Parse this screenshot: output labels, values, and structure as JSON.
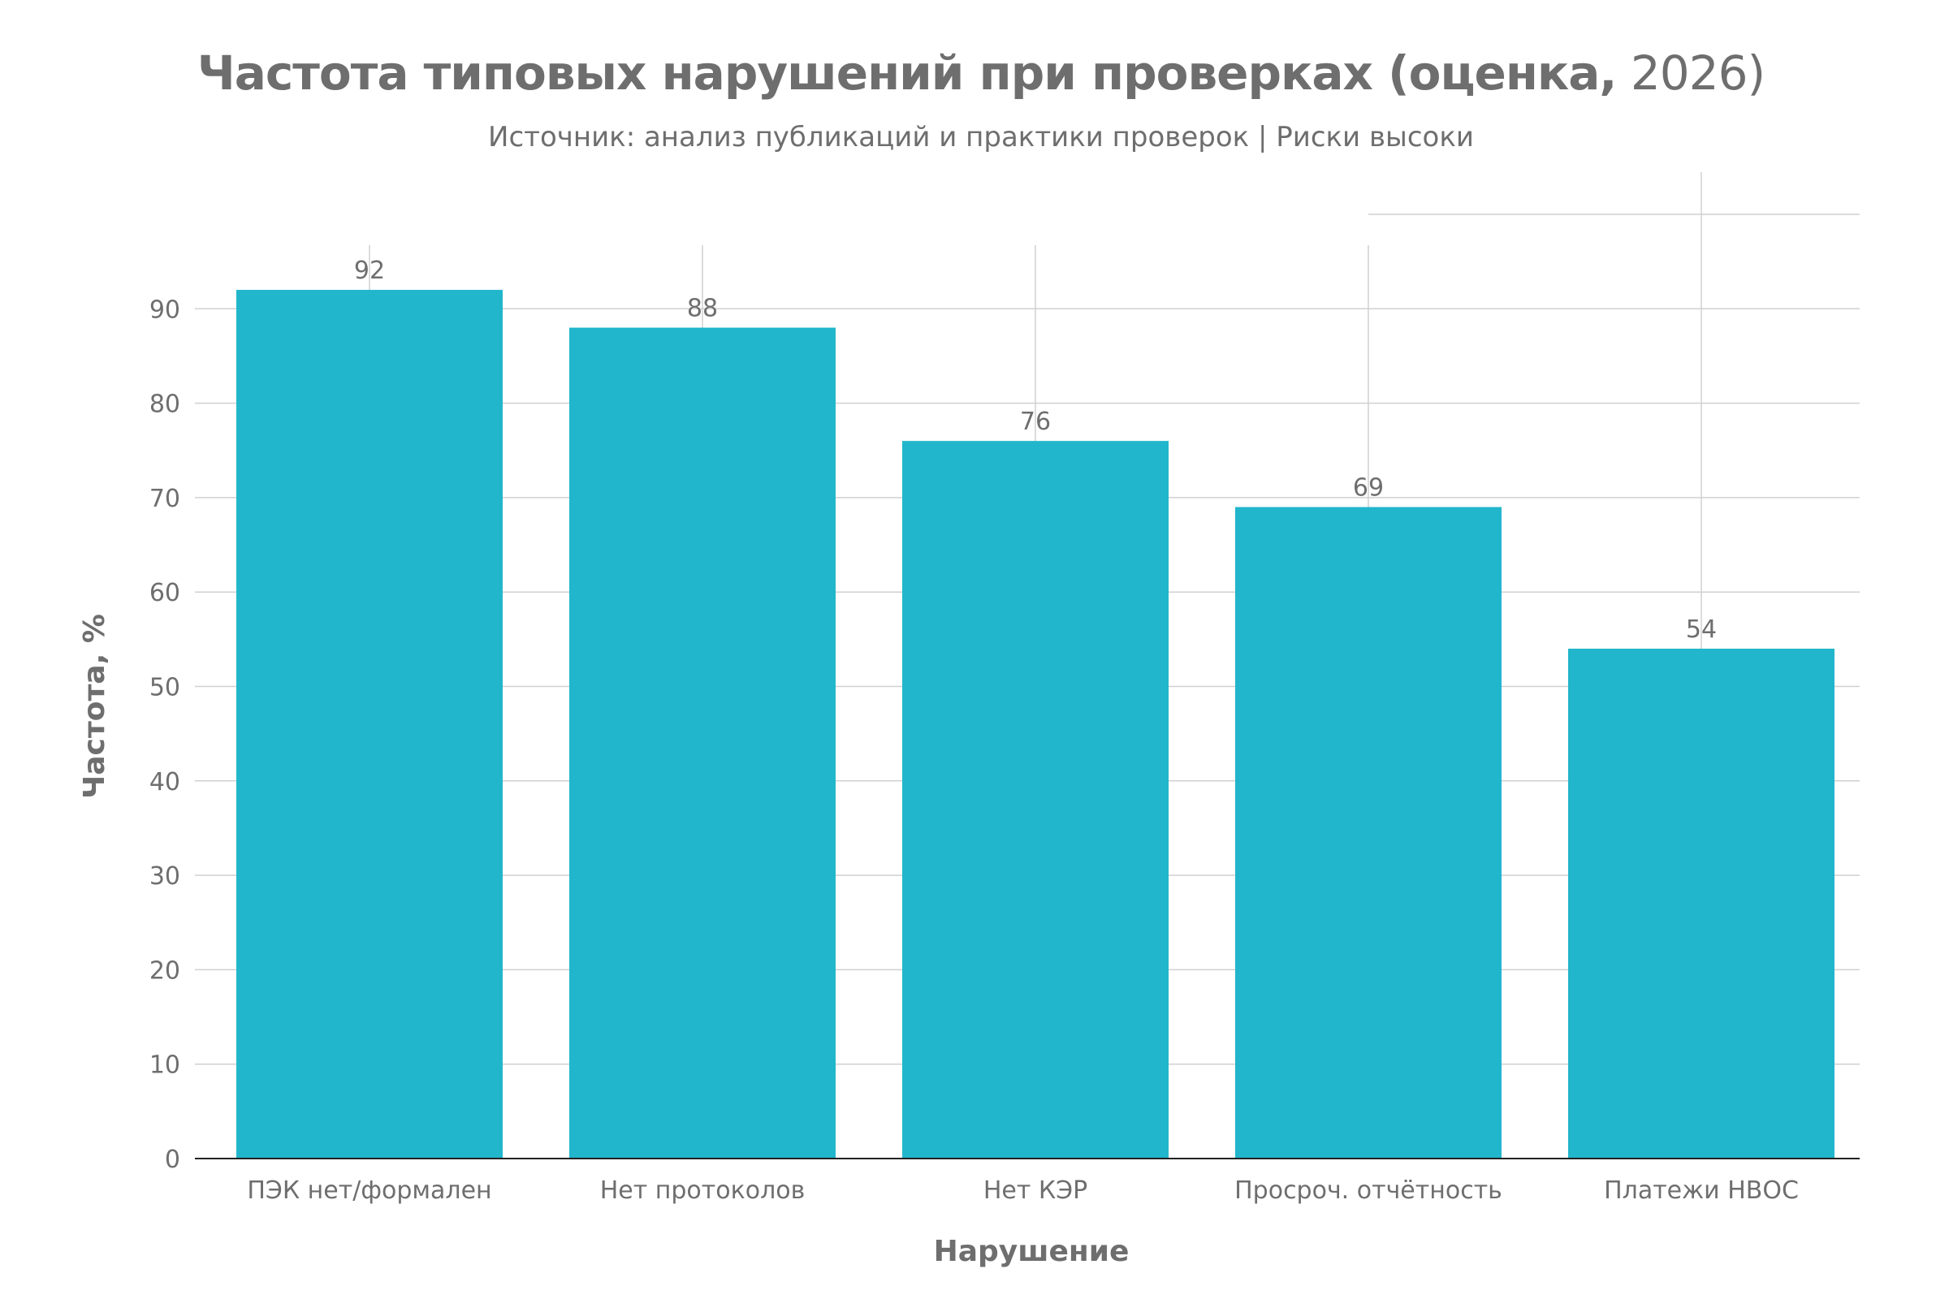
{
  "chart_data": {
    "type": "bar",
    "title_bold": "Частота типовых нарушений при проверках (оценка,",
    "title_year": " 2026)",
    "subtitle": "Источник: анализ публикаций и практики проверок | Риски высоки",
    "xlabel": "Нарушение",
    "ylabel": "Частота, %",
    "categories": [
      "ПЭК нет/формален",
      "Нет протоколов",
      "Нет КЭР",
      "Просроч. отчётность",
      "Платежи НВОС"
    ],
    "values": [
      92,
      88,
      76,
      69,
      54
    ],
    "data_labels": [
      "92",
      "88",
      "76",
      "69",
      "54"
    ],
    "ylim": [
      0,
      100
    ],
    "yticks": [
      0,
      10,
      20,
      30,
      40,
      50,
      60,
      70,
      80,
      90
    ],
    "grid": true,
    "legend": "none",
    "bar_color": "#22b6cc",
    "text_color": "#6e6e6e",
    "grid_color": "#d0d0d0"
  }
}
